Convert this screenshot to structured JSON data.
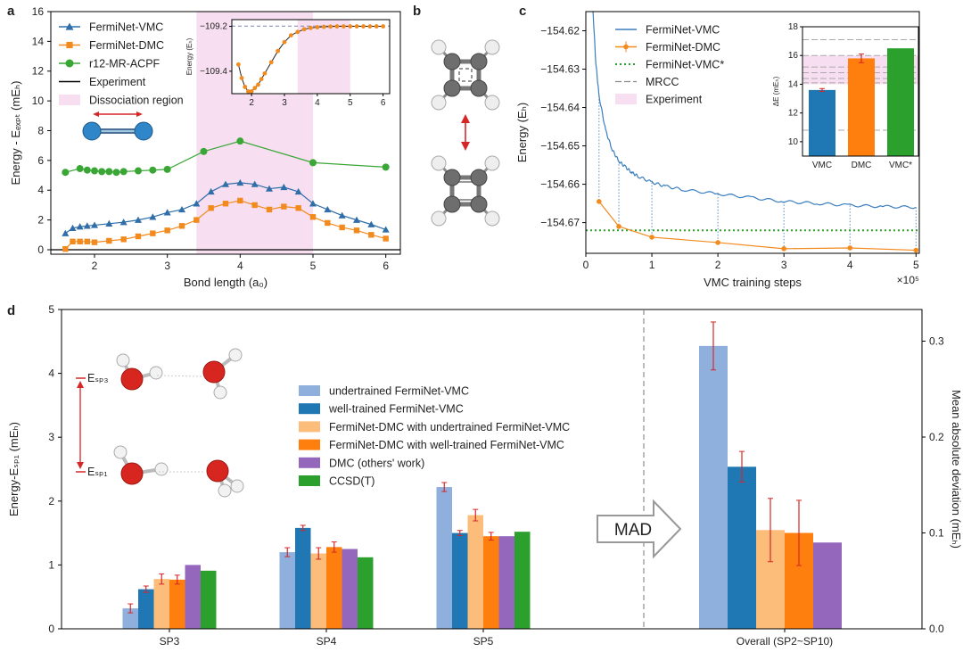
{
  "panel_labels": [
    "a",
    "b",
    "c",
    "d"
  ],
  "colors": {
    "blue": "#2f6ea8",
    "orange": "#f28a1e",
    "green": "#3aa635",
    "pink": "#f7dff1",
    "light_blue": "#8fb0dd",
    "dark_blue": "#1f77b4",
    "light_orange": "#fdbd7a",
    "purple": "#9467bd",
    "bright_green": "#2ca02c",
    "red": "#d62728"
  },
  "chart_data": [
    {
      "id": "a",
      "type": "line",
      "xlabel": "Bond length (a₀)",
      "ylabel": "Energy - Eₑₓₚₜ (mEₕ)",
      "xlim": [
        1.4,
        6.2
      ],
      "ylim": [
        -0.3,
        16
      ],
      "xticks": [
        "2",
        "3",
        "4",
        "5",
        "6"
      ],
      "yticks": [
        "0",
        "2",
        "4",
        "6",
        "8",
        "10",
        "12",
        "14",
        "16"
      ],
      "shaded_region": {
        "label": "Dissociation region",
        "x0": 3.4,
        "x1": 5.0
      },
      "legend": [
        "FermiNet-VMC",
        "FermiNet-DMC",
        "r12-MR-ACPF",
        "Experiment",
        "Dissociation region"
      ],
      "legend_position": "upper-left",
      "series": [
        {
          "name": "FermiNet-VMC",
          "x": [
            1.6,
            1.7,
            1.8,
            1.9,
            2.0,
            2.2,
            2.4,
            2.6,
            2.8,
            3.0,
            3.2,
            3.4,
            3.6,
            3.8,
            4.0,
            4.2,
            4.4,
            4.6,
            4.8,
            5.0,
            5.2,
            5.4,
            5.6,
            5.8,
            6.0
          ],
          "y": [
            1.1,
            1.45,
            1.55,
            1.6,
            1.65,
            1.75,
            1.85,
            2.0,
            2.2,
            2.5,
            2.7,
            3.1,
            3.9,
            4.4,
            4.5,
            4.4,
            4.1,
            4.2,
            3.9,
            3.1,
            2.7,
            2.3,
            2.0,
            1.7,
            1.35
          ]
        },
        {
          "name": "FermiNet-DMC",
          "x": [
            1.6,
            1.7,
            1.8,
            1.9,
            2.0,
            2.2,
            2.4,
            2.6,
            2.8,
            3.0,
            3.2,
            3.4,
            3.6,
            3.8,
            4.0,
            4.2,
            4.4,
            4.6,
            4.8,
            5.0,
            5.2,
            5.4,
            5.6,
            5.8,
            6.0
          ],
          "y": [
            0.05,
            0.55,
            0.55,
            0.55,
            0.5,
            0.6,
            0.7,
            0.9,
            1.1,
            1.3,
            1.6,
            2.0,
            2.8,
            3.1,
            3.3,
            3.0,
            2.7,
            2.9,
            2.8,
            2.2,
            1.8,
            1.5,
            1.3,
            1.0,
            0.75
          ]
        },
        {
          "name": "r12-MR-ACPF",
          "x": [
            1.6,
            1.8,
            1.9,
            2.0,
            2.1,
            2.2,
            2.3,
            2.4,
            2.6,
            2.8,
            3.0,
            3.5,
            4.0,
            5.0,
            6.0
          ],
          "y": [
            5.2,
            5.45,
            5.35,
            5.3,
            5.25,
            5.25,
            5.2,
            5.25,
            5.3,
            5.35,
            5.4,
            6.6,
            7.3,
            5.85,
            5.55
          ]
        },
        {
          "name": "Experiment",
          "x": [
            1.4,
            6.2
          ],
          "y": [
            0,
            0
          ]
        }
      ],
      "inset": {
        "ylabel": "Energy (Eₕ)",
        "xlim": [
          1.4,
          6.2
        ],
        "ylim": [
          -109.5,
          -109.17
        ],
        "xticks": [
          "2",
          "3",
          "4",
          "5",
          "6"
        ],
        "yticks": [
          "−109.2",
          "−109.4"
        ],
        "ytick_values": [
          -109.2,
          -109.4
        ],
        "reference_y": -109.199,
        "shaded_region": {
          "x0": 3.4,
          "x1": 5.0
        },
        "x": [
          1.6,
          1.7,
          1.8,
          1.9,
          2.0,
          2.1,
          2.2,
          2.3,
          2.4,
          2.6,
          2.8,
          3.0,
          3.2,
          3.4,
          3.6,
          3.8,
          4.0,
          4.2,
          4.4,
          4.6,
          4.8,
          5.0,
          5.2,
          5.4,
          5.6,
          5.8,
          6.0
        ],
        "y": [
          -109.37,
          -109.43,
          -109.47,
          -109.49,
          -109.49,
          -109.475,
          -109.46,
          -109.435,
          -109.41,
          -109.36,
          -109.31,
          -109.27,
          -109.24,
          -109.225,
          -109.213,
          -109.207,
          -109.204,
          -109.202,
          -109.201,
          -109.2,
          -109.2,
          -109.2,
          -109.2,
          -109.2,
          -109.2,
          -109.2,
          -109.2
        ]
      }
    },
    {
      "id": "c",
      "type": "line",
      "xlabel": "VMC training steps",
      "ylabel": "Energy (Eₕ)",
      "x_multiplier_label": "×10⁵",
      "xlim": [
        0,
        5.05
      ],
      "ylim": [
        -154.678,
        -154.615
      ],
      "xticks": [
        "0",
        "1",
        "2",
        "3",
        "4",
        "5"
      ],
      "yticks": [
        "−154.62",
        "−154.63",
        "−154.64",
        "−154.65",
        "−154.66",
        "−154.67"
      ],
      "ytick_values": [
        -154.62,
        -154.63,
        -154.64,
        -154.65,
        -154.66,
        -154.67
      ],
      "legend": [
        "FermiNet-VMC",
        "FermiNet-DMC",
        "FermiNet-VMC*",
        "MRCC",
        "Experiment"
      ],
      "legend_position": "upper-left",
      "series": [
        {
          "name": "FermiNet-VMC",
          "x": [
            0.1,
            0.15,
            0.2,
            0.3,
            0.4,
            0.5,
            0.6,
            0.7,
            0.8,
            1.0,
            1.2,
            1.5,
            2.0,
            2.5,
            3.0,
            3.5,
            4.0,
            4.5,
            5.0
          ],
          "y": [
            -154.612,
            -154.628,
            -154.637,
            -154.646,
            -154.651,
            -154.654,
            -154.6555,
            -154.657,
            -154.658,
            -154.6595,
            -154.6605,
            -154.6615,
            -154.6625,
            -154.6635,
            -154.6645,
            -154.665,
            -154.6655,
            -154.6658,
            -154.666
          ]
        },
        {
          "name": "FermiNet-DMC",
          "x": [
            0.2,
            0.5,
            1.0,
            2.0,
            3.0,
            4.0,
            5.0
          ],
          "y": [
            -154.6645,
            -154.671,
            -154.6738,
            -154.6752,
            -154.6768,
            -154.6766,
            -154.6772
          ]
        },
        {
          "name": "FermiNet-VMC*",
          "y": -154.672
        }
      ],
      "inset": {
        "ylabel": "ΔE (mEₕ)",
        "categories": [
          "VMC",
          "DMC",
          "VMC*"
        ],
        "values": [
          13.6,
          15.8,
          16.5
        ],
        "errors": [
          0.1,
          0.3,
          0
        ],
        "ylim": [
          9,
          18
        ],
        "yticks": [
          "10",
          "12",
          "14",
          "16",
          "18"
        ],
        "ytick_values": [
          10,
          12,
          14,
          16,
          18
        ],
        "mrcc_lines": [
          10.8,
          14.1,
          14.4,
          14.8,
          15.2,
          16.0,
          17.1
        ],
        "experiment_band": [
          14.0,
          16.0
        ]
      }
    },
    {
      "id": "d",
      "type": "bar",
      "ylabel": "Energy-Eₛₚ₁ (mEₕ)",
      "ylabel2": "Mean absolute deviation (mEₕ)",
      "ylim": [
        0,
        5
      ],
      "ylim2": [
        0,
        0.333
      ],
      "yticks": [
        "0",
        "1",
        "2",
        "3",
        "4",
        "5"
      ],
      "yticks2": [
        "0.0",
        "0.1",
        "0.2",
        "0.3"
      ],
      "categories": [
        "SP3",
        "SP4",
        "SP5",
        "Overall (SP2~SP10)"
      ],
      "legend_position": "upper-center",
      "series": [
        {
          "name": "undertrained FermiNet-VMC",
          "values": [
            0.32,
            1.2,
            2.22,
            0.295
          ],
          "errors": [
            0.07,
            0.07,
            0.07,
            0.025
          ]
        },
        {
          "name": "well-trained FermiNet-VMC",
          "values": [
            0.62,
            1.58,
            1.5,
            0.169
          ],
          "errors": [
            0.05,
            0.04,
            0.04,
            0.016
          ]
        },
        {
          "name": "FermiNet-DMC with undertrained FermiNet-VMC",
          "values": [
            0.78,
            1.18,
            1.78,
            0.103
          ],
          "errors": [
            0.08,
            0.09,
            0.09,
            0.033
          ]
        },
        {
          "name": "FermiNet-DMC with well-trained FermiNet-VMC",
          "values": [
            0.77,
            1.28,
            1.45,
            0.1
          ],
          "errors": [
            0.07,
            0.08,
            0.06,
            0.034
          ]
        },
        {
          "name": "DMC (others' work)",
          "values": [
            1.0,
            1.25,
            1.45,
            0.09
          ],
          "errors": [
            0,
            0,
            0,
            0
          ]
        },
        {
          "name": "CCSD(T)",
          "values": [
            0.91,
            1.12,
            1.52,
            null
          ],
          "errors": [
            0,
            0,
            0,
            0
          ]
        }
      ],
      "annotations": [
        "MAD",
        "Eₛₚ₃",
        "Eₛₚ₁"
      ]
    }
  ]
}
